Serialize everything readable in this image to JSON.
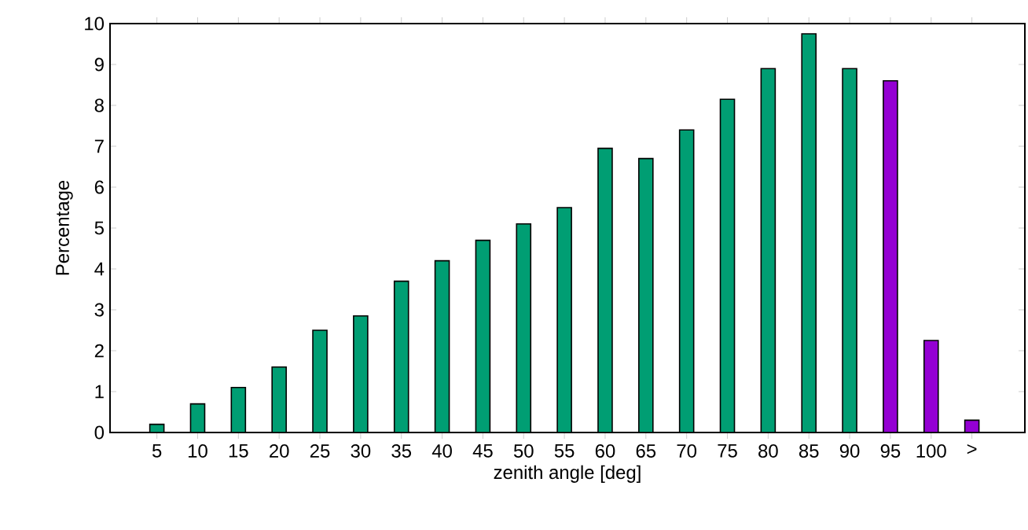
{
  "chart_data": {
    "type": "bar",
    "xlabel": "zenith angle [deg]",
    "ylabel": "Percentage",
    "categories": [
      "5",
      "10",
      "15",
      "20",
      "25",
      "30",
      "35",
      "40",
      "45",
      "50",
      "55",
      "60",
      "65",
      "70",
      "75",
      "80",
      "85",
      "90",
      "95",
      "100",
      ">"
    ],
    "values": [
      0.2,
      0.7,
      1.1,
      1.6,
      2.5,
      2.85,
      3.7,
      4.2,
      4.7,
      5.1,
      5.5,
      6.95,
      6.7,
      7.4,
      8.15,
      8.9,
      9.75,
      8.9,
      8.6,
      2.25,
      0.3
    ],
    "colors": [
      "#009e73",
      "#009e73",
      "#009e73",
      "#009e73",
      "#009e73",
      "#009e73",
      "#009e73",
      "#009e73",
      "#009e73",
      "#009e73",
      "#009e73",
      "#009e73",
      "#009e73",
      "#009e73",
      "#009e73",
      "#009e73",
      "#009e73",
      "#009e73",
      "#9400d3",
      "#9400d3",
      "#9400d3"
    ],
    "ylim": [
      0,
      10
    ],
    "yticks": [
      0,
      1,
      2,
      3,
      4,
      5,
      6,
      7,
      8,
      9,
      10
    ]
  }
}
